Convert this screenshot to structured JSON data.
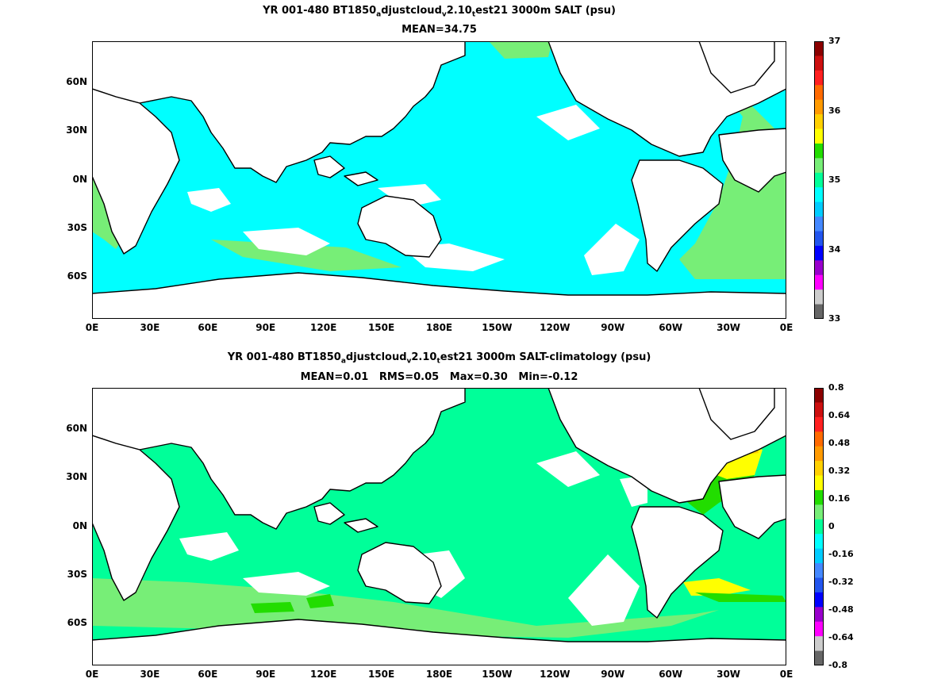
{
  "panels": [
    {
      "title_parts": [
        "YR 001-480 BT1850",
        "a",
        "djustcloud",
        "v",
        "2.10",
        "t",
        "est21 3000m SALT (psu)"
      ],
      "stats_text": "MEAN=34.75",
      "colorbar": {
        "labels": [
          "37",
          "36",
          "35",
          "34",
          "33"
        ],
        "colors": [
          "#8b0000",
          "#cc1010",
          "#ff2020",
          "#ff6a00",
          "#ff9a00",
          "#ffd000",
          "#ffff00",
          "#22dd00",
          "#77ee77",
          "#00ff99",
          "#00ffff",
          "#00ccff",
          "#4488ff",
          "#2255ee",
          "#0000ff",
          "#9900cc",
          "#ff00ff",
          "#cccccc",
          "#666666"
        ]
      },
      "ocean_color": "#00ffff"
    },
    {
      "title_parts": [
        "YR 001-480 BT1850",
        "a",
        "djustcloud",
        "v",
        "2.10",
        "t",
        "est21 3000m SALT-climatology (psu)"
      ],
      "stats_text": "MEAN=0.01   RMS=0.05   Max=0.30   Min=-0.12",
      "colorbar": {
        "labels": [
          "0.8",
          "0.64",
          "0.48",
          "0.32",
          "0.16",
          "0",
          "-0.16",
          "-0.32",
          "-0.48",
          "-0.64",
          "-0.8"
        ],
        "colors": [
          "#8b0000",
          "#cc1010",
          "#ff2020",
          "#ff6a00",
          "#ff9a00",
          "#ffd000",
          "#ffff00",
          "#22dd00",
          "#77ee77",
          "#00ff99",
          "#00ffff",
          "#00ccff",
          "#4488ff",
          "#2255ee",
          "#0000ff",
          "#9900cc",
          "#ff00ff",
          "#cccccc",
          "#666666"
        ]
      },
      "ocean_color": "#00ff99"
    }
  ],
  "axes": {
    "x_ticks": [
      "0E",
      "30E",
      "60E",
      "90E",
      "120E",
      "150E",
      "180E",
      "150W",
      "120W",
      "90W",
      "60W",
      "30W",
      "0E"
    ],
    "y_ticks": [
      "60N",
      "30N",
      "0N",
      "30S",
      "60S"
    ]
  }
}
